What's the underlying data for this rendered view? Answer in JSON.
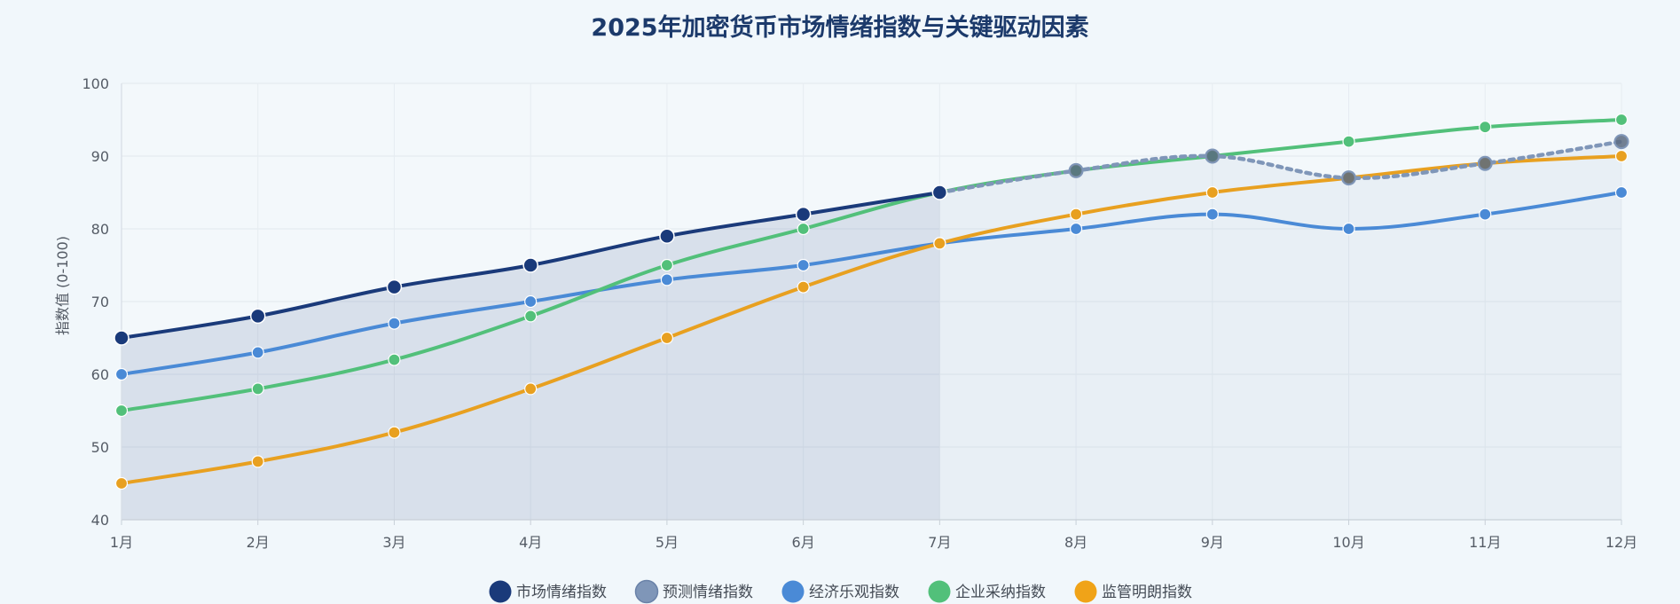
{
  "chart_data": {
    "type": "line",
    "title": "2025年加密货币市场情绪指数与关键驱动因素",
    "xlabel": "",
    "ylabel": "指数值 (0-100)",
    "categories": [
      "1月",
      "2月",
      "3月",
      "4月",
      "5月",
      "6月",
      "7月",
      "8月",
      "9月",
      "10月",
      "11月",
      "12月"
    ],
    "ylim": [
      40,
      100
    ],
    "yticks": [
      40,
      50,
      60,
      70,
      80,
      90,
      100
    ],
    "grid": true,
    "legend_position": "bottom",
    "series": [
      {
        "name": "市场情绪指数",
        "color": "#1a3a7a",
        "style": "solid",
        "filled": true,
        "values": [
          65,
          68,
          72,
          75,
          79,
          82,
          85,
          null,
          null,
          null,
          null,
          null
        ]
      },
      {
        "name": "预测情绪指数",
        "color": "#7f96b8",
        "style": "dotted",
        "filled": true,
        "values": [
          null,
          null,
          null,
          null,
          null,
          null,
          85,
          88,
          90,
          87,
          89,
          92
        ]
      },
      {
        "name": "经济乐观指数",
        "color": "#4a8ad6",
        "style": "solid",
        "filled": false,
        "values": [
          60,
          63,
          67,
          70,
          73,
          75,
          78,
          80,
          82,
          80,
          82,
          85
        ]
      },
      {
        "name": "企业采纳指数",
        "color": "#52c07a",
        "style": "solid",
        "filled": false,
        "values": [
          55,
          58,
          62,
          68,
          75,
          80,
          85,
          88,
          90,
          92,
          94,
          95
        ]
      },
      {
        "name": "监管明朗指数",
        "color": "#e8a020",
        "style": "solid",
        "filled": false,
        "values": [
          45,
          48,
          52,
          58,
          65,
          72,
          78,
          82,
          85,
          87,
          89,
          90
        ]
      }
    ]
  }
}
